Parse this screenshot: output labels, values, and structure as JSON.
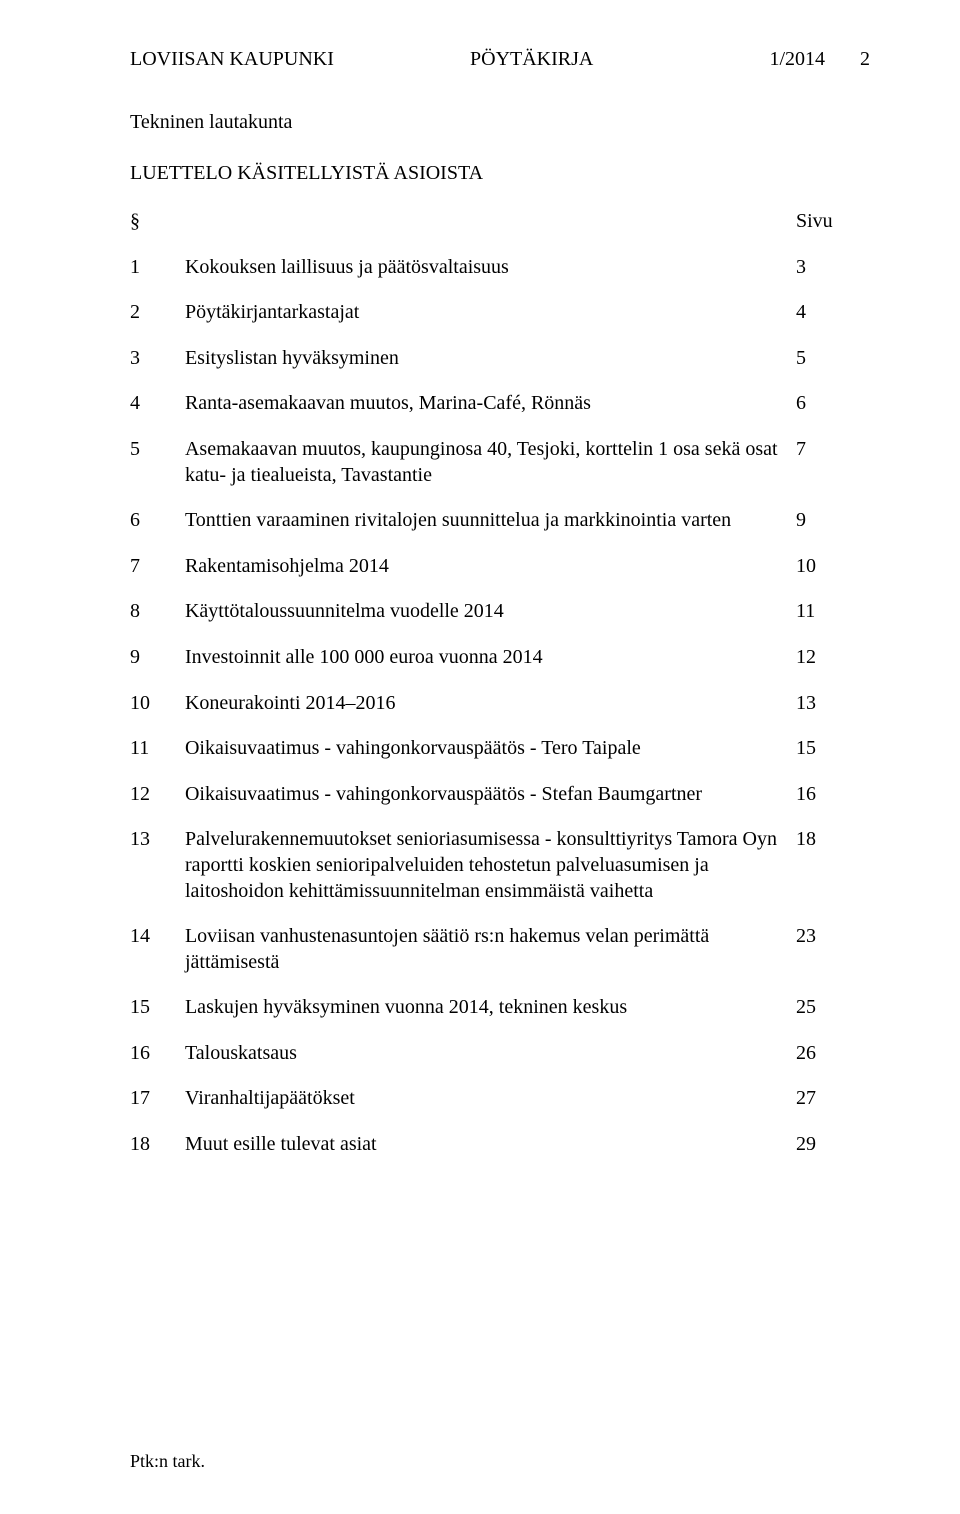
{
  "header": {
    "org": "LOVIISAN KAUPUNKI",
    "doctype": "PÖYTÄKIRJA",
    "docnum": "1/2014",
    "pagenum": "2"
  },
  "committee": "Tekninen lautakunta",
  "list_title": "LUETTELO KÄSITELLYISTÄ ASIOISTA",
  "col_symbol": "§",
  "col_page_label": "Sivu",
  "rows": [
    {
      "n": "1",
      "desc": "Kokouksen laillisuus ja päätösvaltaisuus",
      "page": "3"
    },
    {
      "n": "2",
      "desc": "Pöytäkirjantarkastajat",
      "page": "4"
    },
    {
      "n": "3",
      "desc": "Esityslistan hyväksyminen",
      "page": "5"
    },
    {
      "n": "4",
      "desc": "Ranta-asemakaavan muutos, Marina-Café, Rönnäs",
      "page": "6"
    },
    {
      "n": "5",
      "desc": "Asemakaavan muutos, kaupunginosa 40, Tesjoki, korttelin 1 osa sekä osat katu- ja tiealueista, Tavastantie",
      "page": "7"
    },
    {
      "n": "6",
      "desc": "Tonttien varaaminen rivitalojen suunnittelua ja markkinointia varten",
      "page": "9"
    },
    {
      "n": "7",
      "desc": "Rakentamisohjelma 2014",
      "page": "10"
    },
    {
      "n": "8",
      "desc": "Käyttötaloussuunnitelma vuodelle 2014",
      "page": "11"
    },
    {
      "n": "9",
      "desc": "Investoinnit alle 100 000 euroa vuonna 2014",
      "page": "12"
    },
    {
      "n": "10",
      "desc": "Koneurakointi 2014–2016",
      "page": "13"
    },
    {
      "n": "11",
      "desc": "Oikaisuvaatimus - vahingonkorvauspäätös - Tero Taipale",
      "page": "15"
    },
    {
      "n": "12",
      "desc": "Oikaisuvaatimus - vahingonkorvauspäätös - Stefan Baumgartner",
      "page": "16"
    },
    {
      "n": "13",
      "desc": "Palvelurakennemuutokset senioriasumisessa - konsulttiyritys Tamora Oyn raportti koskien senioripalveluiden tehostetun palveluasumisen ja laitoshoidon kehittämissuunnitelman ensimmäistä vaihetta",
      "page": "18"
    },
    {
      "n": "14",
      "desc": "Loviisan vanhustenasuntojen säätiö rs:n hakemus velan perimättä jättämisestä",
      "page": "23"
    },
    {
      "n": "15",
      "desc": "Laskujen hyväksyminen vuonna 2014, tekninen keskus",
      "page": "25"
    },
    {
      "n": "16",
      "desc": "Talouskatsaus",
      "page": "26"
    },
    {
      "n": "17",
      "desc": "Viranhaltijapäätökset",
      "page": "27"
    },
    {
      "n": "18",
      "desc": "Muut esille tulevat asiat",
      "page": "29"
    }
  ],
  "footer": "Ptk:n tark."
}
